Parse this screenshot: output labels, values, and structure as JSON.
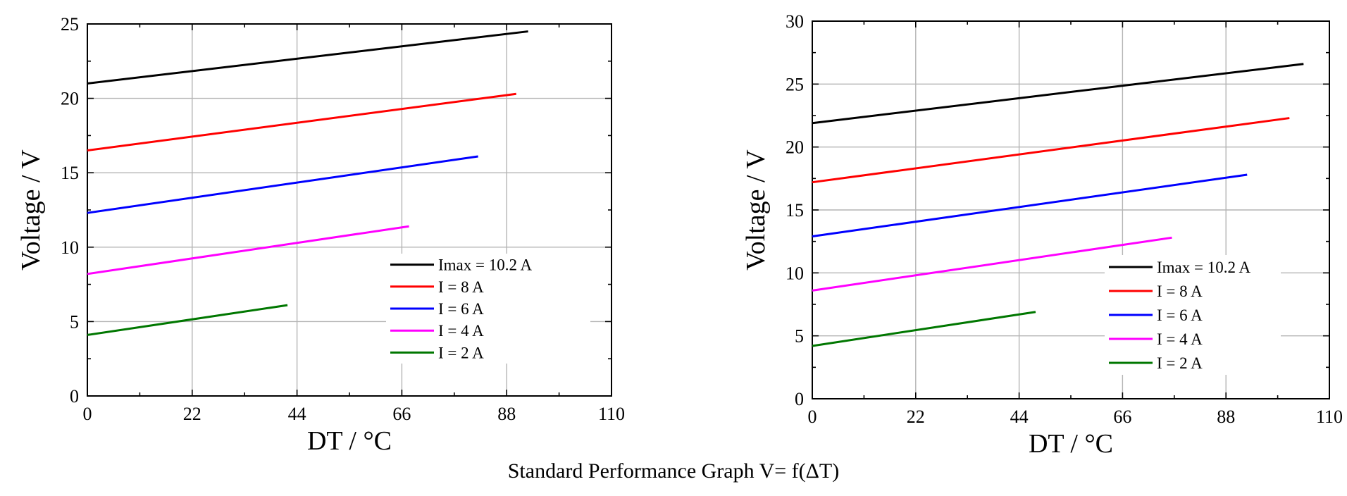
{
  "caption": "Standard Performance Graph V= f(ΔT)",
  "chart_data": [
    {
      "type": "line",
      "xlabel": "DT / °C",
      "ylabel": "Voltage / V",
      "xlim": [
        0,
        110
      ],
      "ylim": [
        0,
        25
      ],
      "xticks": [
        0,
        22,
        44,
        66,
        88,
        110
      ],
      "yticks": [
        0,
        5,
        10,
        15,
        20,
        25
      ],
      "grid": true,
      "legend_position": "lower-right",
      "series": [
        {
          "name": "Imax = 10.2 A",
          "color": "#000000",
          "x": [
            0,
            92.5
          ],
          "y": [
            21.0,
            24.5
          ]
        },
        {
          "name": "I = 8 A",
          "color": "#ff0000",
          "x": [
            0,
            90
          ],
          "y": [
            16.5,
            20.3
          ]
        },
        {
          "name": "I = 6 A",
          "color": "#0000ff",
          "x": [
            0,
            82
          ],
          "y": [
            12.3,
            16.1
          ]
        },
        {
          "name": "I = 4 A",
          "color": "#ff00ff",
          "x": [
            0,
            67.5
          ],
          "y": [
            8.2,
            11.4
          ]
        },
        {
          "name": "I = 2 A",
          "color": "#007700",
          "x": [
            0,
            42
          ],
          "y": [
            4.1,
            6.1
          ]
        }
      ]
    },
    {
      "type": "line",
      "xlabel": "DT / °C",
      "ylabel": "Voltage / V",
      "xlim": [
        0,
        110
      ],
      "ylim": [
        0,
        30
      ],
      "xticks": [
        0,
        22,
        44,
        66,
        88,
        110
      ],
      "yticks": [
        0,
        5,
        10,
        15,
        20,
        25,
        30
      ],
      "grid": true,
      "legend_position": "lower-right",
      "series": [
        {
          "name": "Imax = 10.2 A",
          "color": "#000000",
          "x": [
            0,
            104.5
          ],
          "y": [
            21.9,
            26.6
          ]
        },
        {
          "name": "I = 8 A",
          "color": "#ff0000",
          "x": [
            0,
            101.5
          ],
          "y": [
            17.2,
            22.3
          ]
        },
        {
          "name": "I = 6 A",
          "color": "#0000ff",
          "x": [
            0,
            92.5
          ],
          "y": [
            12.9,
            17.8
          ]
        },
        {
          "name": "I = 4 A",
          "color": "#ff00ff",
          "x": [
            0,
            76.5
          ],
          "y": [
            8.6,
            12.8
          ]
        },
        {
          "name": "I = 2 A",
          "color": "#007700",
          "x": [
            0,
            47.5
          ],
          "y": [
            4.2,
            6.9
          ]
        }
      ]
    }
  ]
}
